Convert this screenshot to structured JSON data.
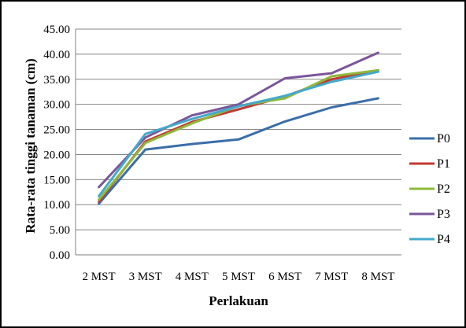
{
  "chart_data": {
    "type": "line",
    "categories": [
      "2 MST",
      "3 MST",
      "4 MST",
      "5 MST",
      "6 MST",
      "7 MST",
      "8 MST"
    ],
    "series": [
      {
        "name": "P0",
        "color": "#3a6ea8",
        "values": [
          10.2,
          21.0,
          22.1,
          23.0,
          26.6,
          29.4,
          31.2
        ]
      },
      {
        "name": "P1",
        "color": "#c03a32",
        "values": [
          10.6,
          22.6,
          26.5,
          29.0,
          31.6,
          35.0,
          36.8
        ]
      },
      {
        "name": "P2",
        "color": "#8eb83c",
        "values": [
          11.0,
          22.3,
          26.2,
          29.7,
          31.2,
          35.6,
          36.8
        ]
      },
      {
        "name": "P3",
        "color": "#7b569a",
        "values": [
          13.5,
          23.4,
          27.8,
          30.0,
          35.2,
          36.2,
          40.3
        ]
      },
      {
        "name": "P4",
        "color": "#44a9c9",
        "values": [
          11.7,
          24.1,
          27.1,
          29.6,
          31.7,
          34.5,
          36.5
        ]
      }
    ],
    "y_ticks": [
      "0.00",
      "5.00",
      "10.00",
      "15.00",
      "20.00",
      "25.00",
      "30.00",
      "35.00",
      "40.00",
      "45.00"
    ],
    "ylim": [
      0,
      45
    ],
    "xlabel": "Perlakuan",
    "ylabel": "Rata-rata tinggi tanaman (cm)",
    "grid": "horizontal",
    "legend_position": "right"
  }
}
